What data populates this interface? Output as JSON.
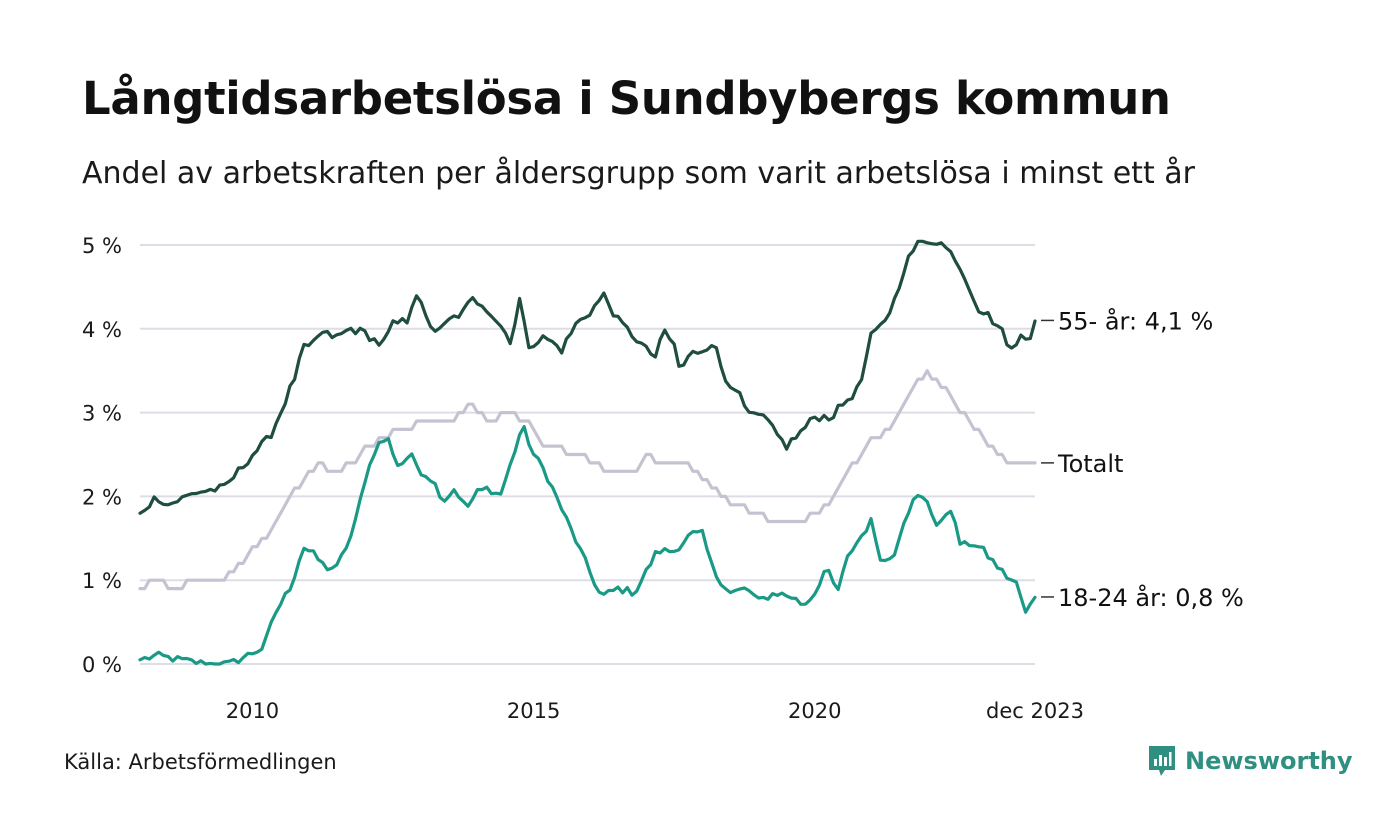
{
  "header": {
    "title": "Långtidsarbetslösa i Sundbybergs kommun",
    "subtitle": "Andel av arbetskraften per åldersgrupp som varit arbetslösa i minst ett år"
  },
  "footer": {
    "source": "Källa: Arbetsförmedlingen",
    "brand": "Newsworthy"
  },
  "colors": {
    "series_55": "#1f4d3f",
    "series_total": "#c5c3d1",
    "series_18_24": "#1a9a86",
    "grid": "#dedde6",
    "brand": "#2f8f80"
  },
  "chart_data": {
    "type": "line",
    "title": "Långtidsarbetslösa i Sundbybergs kommun",
    "subtitle": "Andel av arbetskraften per åldersgrupp som varit arbetslösa i minst ett år",
    "xlabel": "",
    "ylabel": "",
    "x_start": 2008.0,
    "x_end": 2023.9167,
    "x_step_months": 1,
    "xlim": [
      2008.0,
      2023.9167
    ],
    "ylim": [
      0,
      5
    ],
    "y_ticks": [
      0,
      1,
      2,
      3,
      4,
      5
    ],
    "y_tick_labels": [
      "0 %",
      "1 %",
      "2 %",
      "3 %",
      "4 %",
      "5 %"
    ],
    "x_ticks": [
      2010,
      2015,
      2020,
      2023.9167
    ],
    "x_tick_labels": [
      "2010",
      "2015",
      "2020",
      "dec 2023"
    ],
    "grid": true,
    "series": [
      {
        "name": "55- år",
        "label": "55- år: 4,1 %",
        "color": "#1f4d3f",
        "keypoints": [
          [
            2008.0,
            1.8
          ],
          [
            2008.3,
            2.0
          ],
          [
            2008.5,
            1.9
          ],
          [
            2009.0,
            2.05
          ],
          [
            2009.5,
            2.1
          ],
          [
            2010.0,
            2.5
          ],
          [
            2010.3,
            2.7
          ],
          [
            2010.5,
            3.0
          ],
          [
            2010.8,
            3.5
          ],
          [
            2010.9,
            3.8
          ],
          [
            2011.0,
            3.75
          ],
          [
            2011.2,
            3.95
          ],
          [
            2011.5,
            3.9
          ],
          [
            2011.75,
            4.0
          ],
          [
            2012.0,
            3.95
          ],
          [
            2012.3,
            3.8
          ],
          [
            2012.5,
            4.05
          ],
          [
            2012.75,
            4.1
          ],
          [
            2012.9,
            4.45
          ],
          [
            2013.1,
            4.1
          ],
          [
            2013.3,
            3.95
          ],
          [
            2013.5,
            4.1
          ],
          [
            2013.75,
            4.2
          ],
          [
            2013.9,
            4.35
          ],
          [
            2014.1,
            4.3
          ],
          [
            2014.4,
            4.05
          ],
          [
            2014.6,
            3.85
          ],
          [
            2014.75,
            4.35
          ],
          [
            2014.9,
            3.8
          ],
          [
            2015.2,
            3.9
          ],
          [
            2015.5,
            3.75
          ],
          [
            2015.75,
            4.05
          ],
          [
            2016.0,
            4.2
          ],
          [
            2016.25,
            4.4
          ],
          [
            2016.5,
            4.1
          ],
          [
            2016.8,
            3.9
          ],
          [
            2017.0,
            3.75
          ],
          [
            2017.2,
            3.65
          ],
          [
            2017.3,
            4.0
          ],
          [
            2017.5,
            3.8
          ],
          [
            2017.6,
            3.5
          ],
          [
            2017.8,
            3.7
          ],
          [
            2018.0,
            3.75
          ],
          [
            2018.2,
            3.85
          ],
          [
            2018.4,
            3.4
          ],
          [
            2018.6,
            3.3
          ],
          [
            2018.75,
            3.05
          ],
          [
            2018.9,
            2.95
          ],
          [
            2019.1,
            2.95
          ],
          [
            2019.3,
            2.75
          ],
          [
            2019.5,
            2.6
          ],
          [
            2019.8,
            2.8
          ],
          [
            2020.0,
            2.95
          ],
          [
            2020.3,
            2.95
          ],
          [
            2020.5,
            3.1
          ],
          [
            2020.8,
            3.3
          ],
          [
            2021.0,
            3.9
          ],
          [
            2021.2,
            4.05
          ],
          [
            2021.4,
            4.3
          ],
          [
            2021.6,
            4.75
          ],
          [
            2021.8,
            5.0
          ],
          [
            2022.0,
            5.05
          ],
          [
            2022.2,
            5.05
          ],
          [
            2022.5,
            4.85
          ],
          [
            2022.75,
            4.5
          ],
          [
            2022.9,
            4.25
          ],
          [
            2023.1,
            4.15
          ],
          [
            2023.3,
            4.0
          ],
          [
            2023.5,
            3.75
          ],
          [
            2023.6,
            3.8
          ],
          [
            2023.7,
            4.0
          ],
          [
            2023.8,
            3.85
          ],
          [
            2023.92,
            4.1
          ]
        ]
      },
      {
        "name": "Totalt",
        "label": "Totalt",
        "color": "#c5c3d1",
        "keypoints": [
          [
            2008.0,
            0.9
          ],
          [
            2008.3,
            1.0
          ],
          [
            2008.6,
            0.9
          ],
          [
            2009.0,
            1.0
          ],
          [
            2009.5,
            1.0
          ],
          [
            2009.8,
            1.2
          ],
          [
            2010.2,
            1.5
          ],
          [
            2010.5,
            1.8
          ],
          [
            2010.8,
            2.1
          ],
          [
            2011.2,
            2.4
          ],
          [
            2011.5,
            2.25
          ],
          [
            2012.0,
            2.55
          ],
          [
            2012.3,
            2.7
          ],
          [
            2012.7,
            2.8
          ],
          [
            2013.0,
            2.9
          ],
          [
            2013.5,
            2.9
          ],
          [
            2013.9,
            3.1
          ],
          [
            2014.2,
            2.9
          ],
          [
            2014.5,
            3.0
          ],
          [
            2014.9,
            2.9
          ],
          [
            2015.2,
            2.6
          ],
          [
            2015.8,
            2.5
          ],
          [
            2016.3,
            2.3
          ],
          [
            2016.8,
            2.3
          ],
          [
            2017.0,
            2.5
          ],
          [
            2017.3,
            2.4
          ],
          [
            2017.8,
            2.35
          ],
          [
            2018.2,
            2.1
          ],
          [
            2018.6,
            1.9
          ],
          [
            2019.0,
            1.8
          ],
          [
            2019.4,
            1.65
          ],
          [
            2019.8,
            1.7
          ],
          [
            2020.2,
            1.9
          ],
          [
            2020.6,
            2.3
          ],
          [
            2021.0,
            2.65
          ],
          [
            2021.4,
            2.85
          ],
          [
            2021.8,
            3.35
          ],
          [
            2022.0,
            3.5
          ],
          [
            2022.4,
            3.2
          ],
          [
            2022.8,
            2.85
          ],
          [
            2023.2,
            2.55
          ],
          [
            2023.5,
            2.4
          ],
          [
            2023.92,
            2.4
          ]
        ]
      },
      {
        "name": "18-24 år",
        "label": "18-24 år: 0,8 %",
        "color": "#1a9a86",
        "keypoints": [
          [
            2008.0,
            0.05
          ],
          [
            2008.3,
            0.1
          ],
          [
            2008.7,
            0.05
          ],
          [
            2009.2,
            0.0
          ],
          [
            2009.6,
            0.0
          ],
          [
            2009.9,
            0.1
          ],
          [
            2010.2,
            0.2
          ],
          [
            2010.4,
            0.6
          ],
          [
            2010.7,
            0.95
          ],
          [
            2010.9,
            1.4
          ],
          [
            2011.1,
            1.3
          ],
          [
            2011.3,
            1.15
          ],
          [
            2011.5,
            1.15
          ],
          [
            2011.8,
            1.6
          ],
          [
            2012.0,
            2.2
          ],
          [
            2012.2,
            2.6
          ],
          [
            2012.4,
            2.7
          ],
          [
            2012.6,
            2.35
          ],
          [
            2012.8,
            2.5
          ],
          [
            2013.0,
            2.3
          ],
          [
            2013.2,
            2.2
          ],
          [
            2013.4,
            1.95
          ],
          [
            2013.6,
            2.1
          ],
          [
            2013.8,
            1.85
          ],
          [
            2014.0,
            2.05
          ],
          [
            2014.2,
            2.1
          ],
          [
            2014.4,
            2.0
          ],
          [
            2014.6,
            2.4
          ],
          [
            2014.8,
            2.85
          ],
          [
            2015.0,
            2.5
          ],
          [
            2015.2,
            2.3
          ],
          [
            2015.4,
            2.0
          ],
          [
            2015.6,
            1.7
          ],
          [
            2015.8,
            1.4
          ],
          [
            2016.0,
            1.1
          ],
          [
            2016.2,
            0.8
          ],
          [
            2016.5,
            0.9
          ],
          [
            2016.8,
            0.85
          ],
          [
            2017.0,
            1.1
          ],
          [
            2017.2,
            1.35
          ],
          [
            2017.5,
            1.35
          ],
          [
            2017.8,
            1.55
          ],
          [
            2018.0,
            1.55
          ],
          [
            2018.2,
            1.1
          ],
          [
            2018.5,
            0.85
          ],
          [
            2018.8,
            0.9
          ],
          [
            2019.0,
            0.75
          ],
          [
            2019.3,
            0.85
          ],
          [
            2019.6,
            0.8
          ],
          [
            2019.8,
            0.7
          ],
          [
            2020.0,
            0.85
          ],
          [
            2020.2,
            1.15
          ],
          [
            2020.4,
            0.85
          ],
          [
            2020.6,
            1.3
          ],
          [
            2020.8,
            1.5
          ],
          [
            2021.0,
            1.7
          ],
          [
            2021.2,
            1.2
          ],
          [
            2021.4,
            1.3
          ],
          [
            2021.6,
            1.75
          ],
          [
            2021.8,
            2.0
          ],
          [
            2022.0,
            1.95
          ],
          [
            2022.2,
            1.6
          ],
          [
            2022.4,
            1.9
          ],
          [
            2022.6,
            1.4
          ],
          [
            2022.8,
            1.45
          ],
          [
            2023.0,
            1.35
          ],
          [
            2023.2,
            1.2
          ],
          [
            2023.4,
            1.05
          ],
          [
            2023.6,
            0.95
          ],
          [
            2023.75,
            0.6
          ],
          [
            2023.92,
            0.8
          ]
        ]
      }
    ],
    "end_labels": [
      {
        "series": "55- år",
        "text": "55- år: 4,1 %",
        "value": 4.1
      },
      {
        "series": "Totalt",
        "text": "Totalt",
        "value": 2.4
      },
      {
        "series": "18-24 år",
        "text": "18-24 år: 0,8 %",
        "value": 0.8
      }
    ]
  }
}
